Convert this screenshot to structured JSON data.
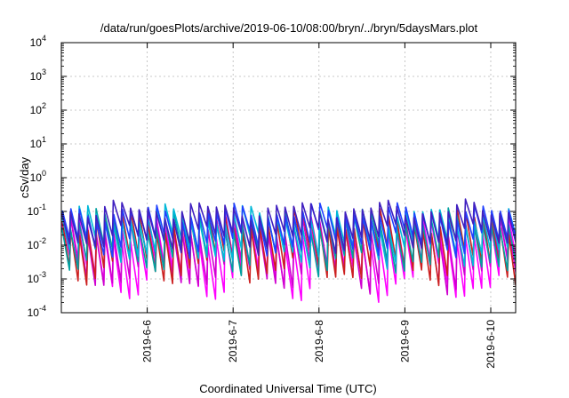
{
  "chart_data": {
    "type": "line",
    "title": "/data/run/goesPlots/archive/2019-06-10/08:00/bryn/../bryn/5daysMars.plot",
    "xlabel": "Coordinated Universal Time (UTC)",
    "ylabel": "cSv/day",
    "yscale": "log",
    "ylim": [
      0.0001,
      10000
    ],
    "xlim": [
      0,
      5.29
    ],
    "x_ticks": [
      {
        "x": 1.0,
        "label": "2019-6-6"
      },
      {
        "x": 2.0,
        "label": "2019-6-7"
      },
      {
        "x": 3.0,
        "label": "2019-6-8"
      },
      {
        "x": 4.0,
        "label": "2019-6-9"
      },
      {
        "x": 5.0,
        "label": "2019-6-10"
      }
    ],
    "y_ticks": [
      {
        "exp": -4,
        "base": "10",
        "sup": "-4"
      },
      {
        "exp": -3,
        "base": "10",
        "sup": "-3"
      },
      {
        "exp": -2,
        "base": "10",
        "sup": "-2"
      },
      {
        "exp": -1,
        "base": "10",
        "sup": "-1"
      },
      {
        "exp": 0,
        "base": "10",
        "sup": "0"
      },
      {
        "exp": 1,
        "base": "10",
        "sup": "1"
      },
      {
        "exp": 2,
        "base": "10",
        "sup": "2"
      },
      {
        "exp": 3,
        "base": "10",
        "sup": "3"
      },
      {
        "exp": 4,
        "base": "10",
        "sup": "4"
      }
    ],
    "grid": true,
    "legend": "none",
    "sawtooth_period_days": 0.1,
    "series": [
      {
        "color": "#ff00ff",
        "peak_log": -1.55,
        "trough_log": -2.95,
        "amp": 0.35,
        "phase": 0.1
      },
      {
        "color": "#d000d0",
        "peak_log": -1.45,
        "trough_log": -2.75,
        "amp": 0.3,
        "phase": 0.3
      },
      {
        "color": "#cc2020",
        "peak_log": -1.3,
        "trough_log": -2.55,
        "amp": 0.3,
        "phase": 0.55
      },
      {
        "color": "#00a0a0",
        "peak_log": -1.25,
        "trough_log": -2.3,
        "amp": 0.25,
        "phase": 0.8
      },
      {
        "color": "#00b8d8",
        "peak_log": -1.15,
        "trough_log": -2.05,
        "amp": 0.25,
        "phase": 1.05
      },
      {
        "color": "#2040ff",
        "peak_log": -1.05,
        "trough_log": -1.85,
        "amp": 0.2,
        "phase": 1.3
      },
      {
        "color": "#4020c0",
        "peak_log": -0.95,
        "trough_log": -1.7,
        "amp": 0.2,
        "phase": 1.55
      }
    ]
  }
}
